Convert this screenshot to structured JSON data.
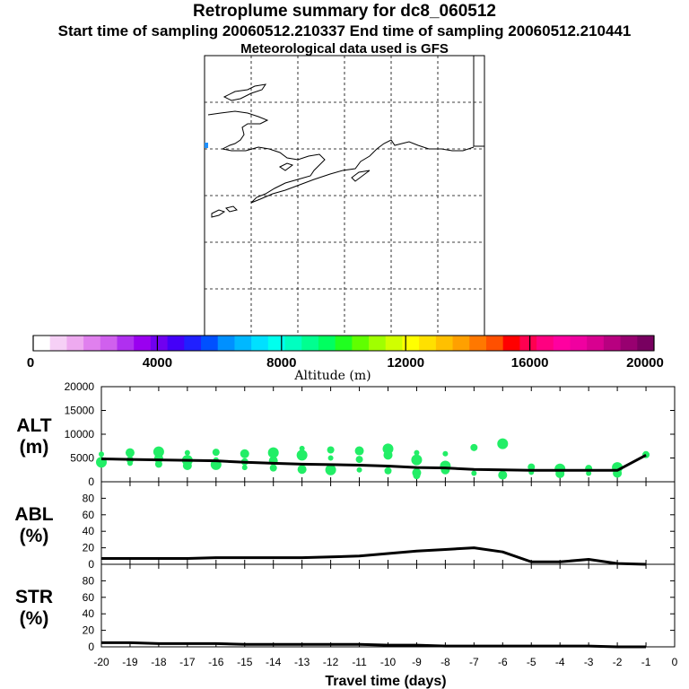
{
  "header": {
    "title": "Retroplume summary for dc8_060512",
    "subtitle": "Start time of sampling 20060512.210337     End time of sampling 20060512.210441",
    "met_line": "Meteorological data used is GFS"
  },
  "colorbar": {
    "tick_labels": [
      "0",
      "4000",
      "8000",
      "12000",
      "16000",
      "20000"
    ],
    "label": "Altitude (m)",
    "colors": [
      "#ffffff",
      "#f6d0f6",
      "#eeaaf0",
      "#e080ee",
      "#d060ee",
      "#b030f0",
      "#9a00f0",
      "#7000f0",
      "#4400f8",
      "#2020ff",
      "#0050ff",
      "#0090ff",
      "#00b8ff",
      "#00e0ff",
      "#00ffee",
      "#00ffc0",
      "#00ff90",
      "#00ff60",
      "#20ff20",
      "#60ff00",
      "#a0ff00",
      "#d0ff00",
      "#ffff00",
      "#ffe000",
      "#ffc000",
      "#ffa000",
      "#ff7800",
      "#ff5000",
      "#ff0000",
      "#ff0050",
      "#ff0080",
      "#ff00a0",
      "#f000a0",
      "#d80090",
      "#b80080",
      "#980070",
      "#780060"
    ]
  },
  "map": {
    "marker_color": "#1e90ff"
  },
  "chart_data": {
    "type": "line",
    "x": [
      -20,
      -19,
      -18,
      -17,
      -16,
      -15,
      -14,
      -13,
      -12,
      -11,
      -10,
      -9,
      -8,
      -7,
      -6,
      -5,
      -4,
      -3,
      -2,
      -1
    ],
    "xlabel": "Travel time (days)",
    "x_tick_labels": [
      "-20",
      "-19",
      "-18",
      "-17",
      "-16",
      "-15",
      "-14",
      "-13",
      "-12",
      "-11",
      "-10",
      "-9",
      "-8",
      "-7",
      "-6",
      "-5",
      "-4",
      "-3",
      "-2",
      "-1",
      "0"
    ],
    "xlim": [
      -20,
      0
    ],
    "panels": [
      {
        "name": "ALT",
        "label_line1": "ALT",
        "label_line2": "(m)",
        "ylim": [
          0,
          20000
        ],
        "y_tick_labels": [
          "0",
          "5000",
          "10000",
          "15000",
          "20000"
        ],
        "series": [
          {
            "name": "mean altitude",
            "values": [
              4800,
              4700,
              4600,
              4500,
              4400,
              4100,
              3900,
              3700,
              3600,
              3500,
              3300,
              3000,
              2900,
              2600,
              2500,
              2400,
              2400,
              2400,
              2400,
              5600
            ]
          }
        ],
        "dot_color": "#22ee66",
        "scatter": [
          {
            "x": -20,
            "y": 5800
          },
          {
            "x": -20,
            "y": 4100
          },
          {
            "x": -19,
            "y": 6100
          },
          {
            "x": -19,
            "y": 4600
          },
          {
            "x": -19,
            "y": 3900
          },
          {
            "x": -18,
            "y": 6300
          },
          {
            "x": -18,
            "y": 4900
          },
          {
            "x": -18,
            "y": 3700
          },
          {
            "x": -17,
            "y": 6100
          },
          {
            "x": -17,
            "y": 4500
          },
          {
            "x": -17,
            "y": 3400
          },
          {
            "x": -16,
            "y": 6200
          },
          {
            "x": -16,
            "y": 4600
          },
          {
            "x": -16,
            "y": 3600
          },
          {
            "x": -15,
            "y": 5900
          },
          {
            "x": -15,
            "y": 4200
          },
          {
            "x": -15,
            "y": 3000
          },
          {
            "x": -14,
            "y": 6100
          },
          {
            "x": -14,
            "y": 4400
          },
          {
            "x": -14,
            "y": 2900
          },
          {
            "x": -13,
            "y": 7000
          },
          {
            "x": -13,
            "y": 5600
          },
          {
            "x": -13,
            "y": 2600
          },
          {
            "x": -12,
            "y": 6700
          },
          {
            "x": -12,
            "y": 5000
          },
          {
            "x": -12,
            "y": 2500
          },
          {
            "x": -11,
            "y": 6500
          },
          {
            "x": -11,
            "y": 4700
          },
          {
            "x": -11,
            "y": 2500
          },
          {
            "x": -10,
            "y": 6900
          },
          {
            "x": -10,
            "y": 5600
          },
          {
            "x": -10,
            "y": 2300
          },
          {
            "x": -9,
            "y": 6100
          },
          {
            "x": -9,
            "y": 4600
          },
          {
            "x": -9,
            "y": 1900
          },
          {
            "x": -9,
            "y": 1300
          },
          {
            "x": -8,
            "y": 5900
          },
          {
            "x": -8,
            "y": 3300
          },
          {
            "x": -8,
            "y": 2500
          },
          {
            "x": -7,
            "y": 7200
          },
          {
            "x": -7,
            "y": 1800
          },
          {
            "x": -6,
            "y": 8000
          },
          {
            "x": -6,
            "y": 1400
          },
          {
            "x": -5,
            "y": 3100
          },
          {
            "x": -5,
            "y": 2000
          },
          {
            "x": -4,
            "y": 2700
          },
          {
            "x": -4,
            "y": 1700
          },
          {
            "x": -3,
            "y": 2800
          },
          {
            "x": -3,
            "y": 1800
          },
          {
            "x": -2,
            "y": 3000
          },
          {
            "x": -2,
            "y": 1800
          },
          {
            "x": -1,
            "y": 5700
          }
        ]
      },
      {
        "name": "ABL",
        "label_line1": "ABL",
        "label_line2": "(%)",
        "ylim": [
          0,
          100
        ],
        "y_tick_labels": [
          "0",
          "20",
          "40",
          "60",
          "80"
        ],
        "series": [
          {
            "name": "ABL fraction",
            "values": [
              7,
              7,
              7,
              7,
              8,
              8,
              8,
              8,
              9,
              10,
              13,
              16,
              18,
              20,
              15,
              3,
              3,
              6,
              1,
              0
            ]
          }
        ]
      },
      {
        "name": "STR",
        "label_line1": "STR",
        "label_line2": "(%)",
        "ylim": [
          0,
          100
        ],
        "y_tick_labels": [
          "0",
          "20",
          "40",
          "60",
          "80"
        ],
        "series": [
          {
            "name": "stratospheric fraction",
            "values": [
              5,
              5,
              4,
              4,
              4,
              3,
              3,
              3,
              3,
              3,
              2,
              2,
              1,
              1,
              1,
              1,
              1,
              1,
              0,
              0
            ]
          }
        ]
      }
    ]
  }
}
